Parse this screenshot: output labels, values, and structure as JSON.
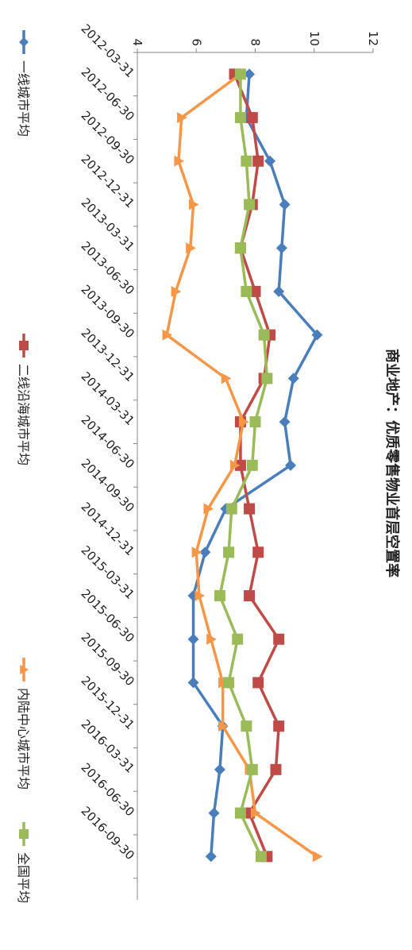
{
  "chart_data": {
    "type": "line",
    "title": "商业地产：优质零售物业首层空置率",
    "xlabel": "",
    "ylabel": "",
    "ylim": [
      4,
      12
    ],
    "y_ticks": [
      "4",
      "6",
      "8",
      "10",
      "12"
    ],
    "orientation": "rotated-90-clockwise",
    "legend_position": "bottom",
    "grid": false,
    "categories": [
      "2012-03-31",
      "2012-06-30",
      "2012-09-30",
      "2012-12-31",
      "2013-03-31",
      "2013-06-30",
      "2013-09-30",
      "2013-12-31",
      "2014-03-31",
      "2014-06-30",
      "2014-09-30",
      "2014-12-31",
      "2015-03-31",
      "2015-06-30",
      "2015-09-30",
      "2015-12-31",
      "2016-03-31",
      "2016-06-30",
      "2016-09-30"
    ],
    "series": [
      {
        "name": "一线城市平均",
        "color": "#4a7ebb",
        "marker": "diamond",
        "values": [
          7.8,
          7.7,
          8.5,
          9.0,
          8.9,
          8.8,
          10.1,
          9.3,
          9.0,
          9.2,
          7.0,
          6.3,
          5.9,
          5.9,
          5.9,
          6.9,
          6.8,
          6.6,
          6.5
        ]
      },
      {
        "name": "二线沿海城市平均",
        "color": "#be4b48",
        "marker": "square",
        "values": [
          7.3,
          7.9,
          8.1,
          7.9,
          7.5,
          8.0,
          8.5,
          8.3,
          7.5,
          7.5,
          7.8,
          8.1,
          7.8,
          8.8,
          8.1,
          8.8,
          8.7,
          7.8,
          8.4
        ]
      },
      {
        "name": "内陆中心城市平均",
        "color": "#f79646",
        "marker": "triangle",
        "values": [
          7.5,
          5.5,
          5.4,
          5.9,
          5.8,
          5.3,
          5.0,
          7.0,
          7.6,
          7.3,
          6.4,
          6.0,
          6.1,
          6.5,
          6.9,
          6.9,
          7.8,
          8.0,
          10.1
        ]
      },
      {
        "name": "全国平均",
        "color": "#9bbb59",
        "marker": "square",
        "values": [
          7.5,
          7.5,
          7.7,
          7.8,
          7.5,
          7.7,
          8.3,
          8.4,
          8.0,
          7.9,
          7.2,
          7.1,
          6.8,
          7.4,
          7.1,
          7.7,
          7.9,
          7.5,
          8.2
        ]
      }
    ]
  }
}
